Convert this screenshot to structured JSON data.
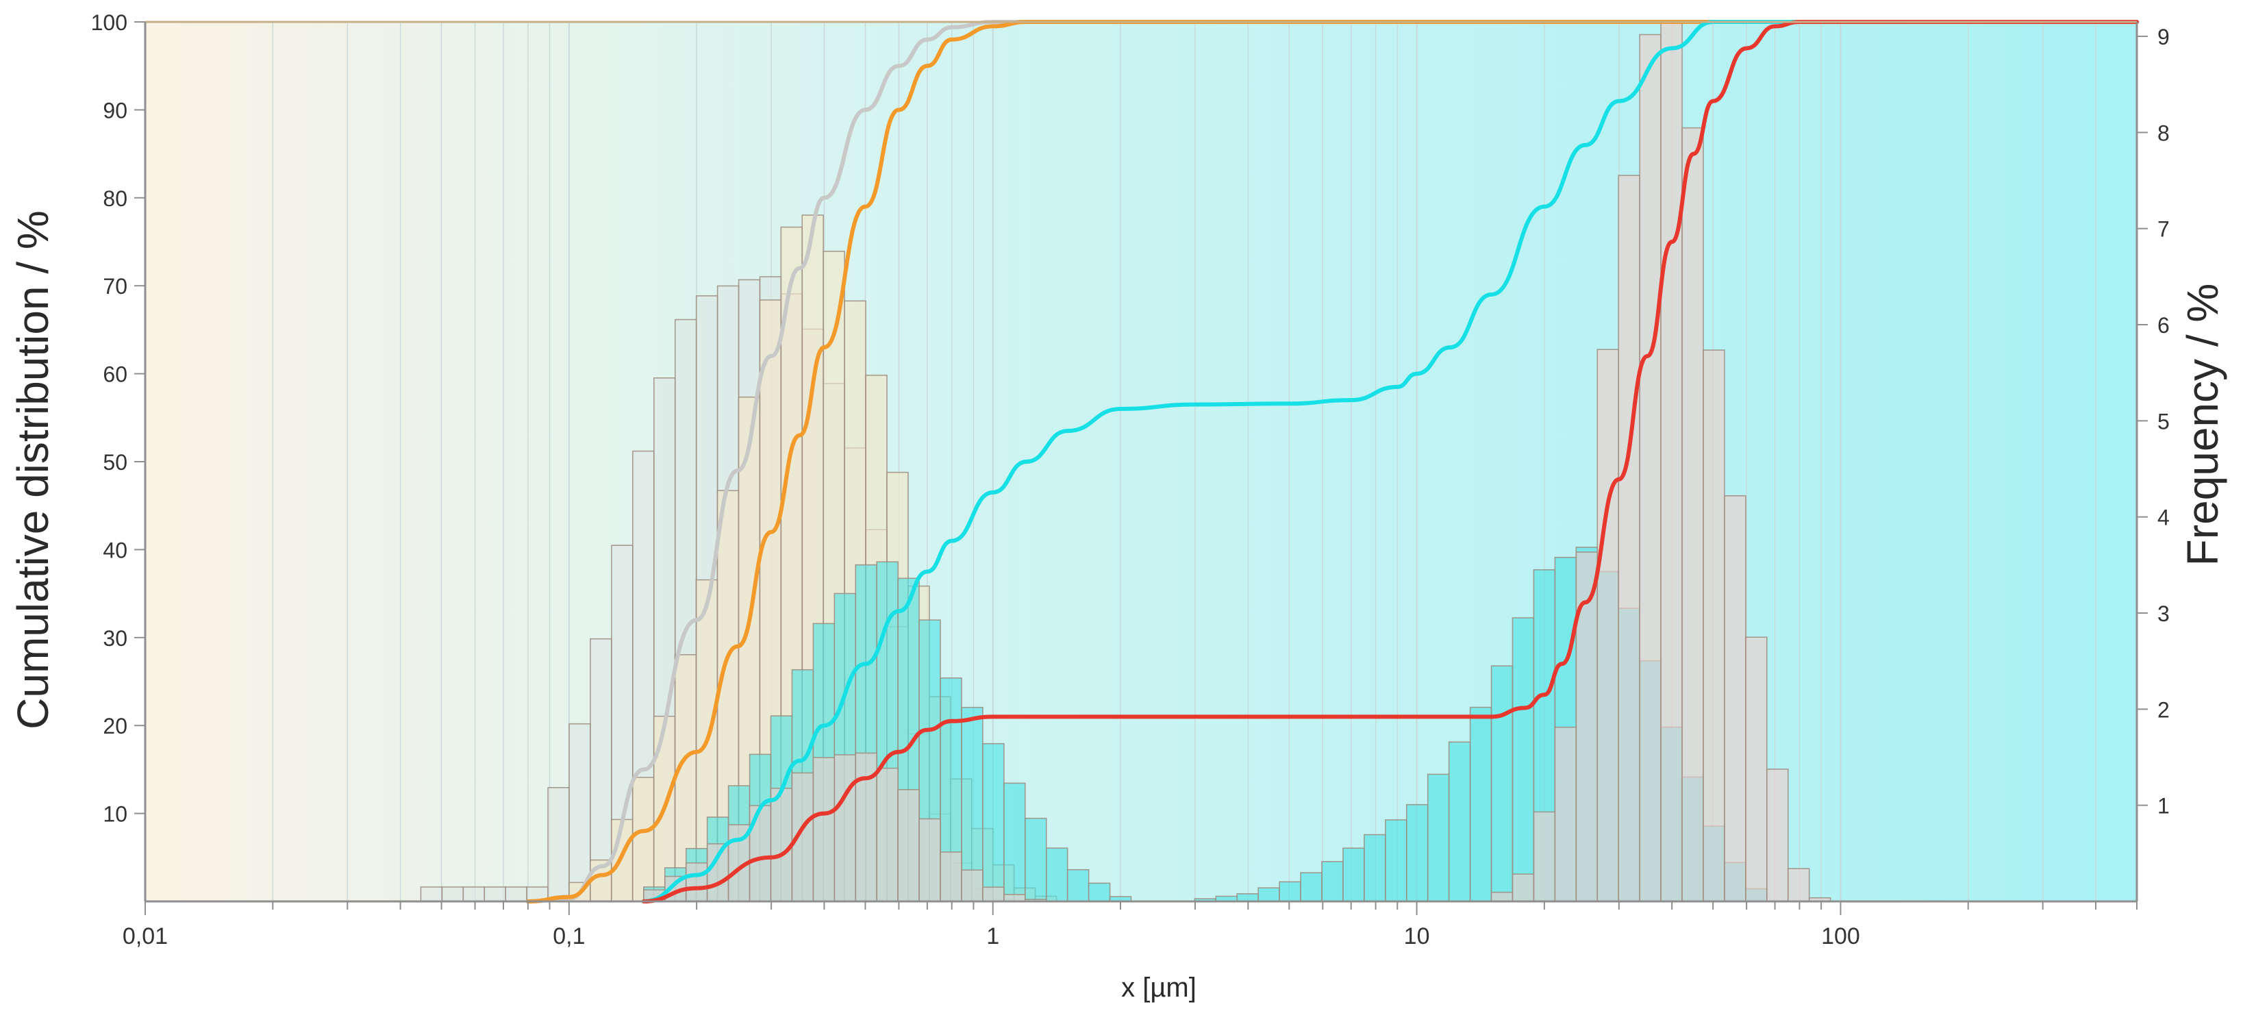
{
  "colors": {
    "background_left": "#fbf3e6",
    "background_mid": "#cdf4f3",
    "background_right": "#a9f1f5",
    "grid": "#c9d9d9",
    "axis": "#c8b18a",
    "series_gray": "#c8c8c8",
    "series_orange": "#f39a2a",
    "series_cyan": "#16e0e6",
    "series_red": "#e8372c",
    "bars_gray_fill": "#dde7e4",
    "bars_orange_fill": "#f3e6c6",
    "bars_cyan_fill": "#4fe2e4",
    "bars_red_fill": "#efcfc9",
    "bar_stroke": "#9c8c80"
  },
  "chart_data": {
    "type": "bar+line",
    "xscale": "log",
    "xlim": [
      0.01,
      500
    ],
    "xlabel": "x [µm]",
    "xticks": [
      {
        "value": 0.01,
        "label": "0,01"
      },
      {
        "value": 0.1,
        "label": "0,1"
      },
      {
        "value": 1,
        "label": "1"
      },
      {
        "value": 10,
        "label": "10"
      },
      {
        "value": 100,
        "label": "100"
      }
    ],
    "ylabel_left": "Cumulative distribution / %",
    "ylim_left": [
      0,
      100
    ],
    "yticks_left": [
      10,
      20,
      30,
      40,
      50,
      60,
      70,
      80,
      90,
      100
    ],
    "ylabel_right": "Frequency / %",
    "ylim_right": [
      0,
      9.15
    ],
    "yticks_right": [
      1,
      2,
      3,
      4,
      5,
      6,
      7,
      8,
      9
    ],
    "histograms": [
      {
        "name": "gray-distribution",
        "color_key": "bars_gray_fill",
        "bins_per_decade": 20,
        "points": [
          [
            0.0447,
            0.15
          ],
          [
            0.09,
            0.15
          ],
          [
            0.09,
            1.0
          ],
          [
            0.1,
            1.4
          ],
          [
            0.12,
            2.8
          ],
          [
            0.15,
            4.7
          ],
          [
            0.18,
            5.9
          ],
          [
            0.2,
            6.25
          ],
          [
            0.25,
            6.45
          ],
          [
            0.3,
            6.5
          ],
          [
            0.35,
            6.25
          ],
          [
            0.4,
            5.7
          ],
          [
            0.5,
            4.4
          ],
          [
            0.6,
            2.8
          ],
          [
            0.7,
            1.3
          ],
          [
            0.8,
            0.55
          ],
          [
            0.9,
            0.2
          ],
          [
            1.0,
            0.05
          ],
          [
            1.12,
            0
          ]
        ]
      },
      {
        "name": "orange-distribution",
        "color_key": "bars_orange_fill",
        "bins_per_decade": 20,
        "points": [
          [
            0.1,
            0.08
          ],
          [
            0.12,
            0.45
          ],
          [
            0.15,
            1.3
          ],
          [
            0.2,
            2.9
          ],
          [
            0.25,
            4.7
          ],
          [
            0.3,
            6.3
          ],
          [
            0.35,
            7.3
          ],
          [
            0.4,
            7.0
          ],
          [
            0.5,
            6.0
          ],
          [
            0.6,
            4.4
          ],
          [
            0.7,
            2.8
          ],
          [
            0.8,
            1.5
          ],
          [
            1.0,
            0.5
          ],
          [
            1.2,
            0.12
          ],
          [
            1.45,
            0
          ]
        ]
      },
      {
        "name": "cyan-distribution",
        "color_key": "bars_cyan_fill",
        "bins_per_decade": 20,
        "points": [
          [
            0.15,
            0.05
          ],
          [
            0.2,
            0.55
          ],
          [
            0.3,
            1.7
          ],
          [
            0.4,
            2.9
          ],
          [
            0.5,
            3.5
          ],
          [
            0.6,
            3.55
          ],
          [
            0.7,
            3.0
          ],
          [
            0.8,
            2.3
          ],
          [
            0.9,
            2.0
          ],
          [
            1.0,
            1.65
          ],
          [
            1.2,
            1.0
          ],
          [
            1.5,
            0.4
          ],
          [
            2.0,
            0.05
          ],
          [
            2.25,
            0
          ],
          [
            2.8,
            0
          ],
          [
            3.2,
            0.03
          ],
          [
            4.0,
            0.08
          ],
          [
            5.0,
            0.2
          ],
          [
            6.0,
            0.35
          ],
          [
            8.0,
            0.7
          ],
          [
            10.0,
            1.0
          ],
          [
            12.0,
            1.5
          ],
          [
            15.0,
            2.2
          ],
          [
            20.0,
            3.45
          ],
          [
            25.0,
            3.7
          ],
          [
            30.0,
            3.3
          ],
          [
            35.0,
            2.6
          ],
          [
            40.0,
            1.8
          ],
          [
            50.0,
            0.8
          ],
          [
            60.0,
            0.2
          ],
          [
            70.0,
            0
          ],
          [
            80.0,
            0
          ]
        ]
      },
      {
        "name": "red-distribution",
        "color_key": "bars_red_fill",
        "bins_per_decade": 20,
        "points": [
          [
            0.15,
            0.05
          ],
          [
            0.2,
            0.4
          ],
          [
            0.3,
            1.1
          ],
          [
            0.4,
            1.5
          ],
          [
            0.5,
            1.55
          ],
          [
            0.6,
            1.3
          ],
          [
            0.7,
            0.9
          ],
          [
            0.8,
            0.5
          ],
          [
            1.0,
            0.15
          ],
          [
            1.2,
            0.03
          ],
          [
            1.4,
            0
          ],
          [
            15.0,
            0
          ],
          [
            18.0,
            0.3
          ],
          [
            22.0,
            1.5
          ],
          [
            25.0,
            3.5
          ],
          [
            28.0,
            5.6
          ],
          [
            32.0,
            7.7
          ],
          [
            35.0,
            9.0
          ],
          [
            40.0,
            9.15
          ],
          [
            45.0,
            8.0
          ],
          [
            50.0,
            5.8
          ],
          [
            60.0,
            3.4
          ],
          [
            70.0,
            1.5
          ],
          [
            80.0,
            0.3
          ],
          [
            90.0,
            0.02
          ],
          [
            100.0,
            0
          ]
        ]
      }
    ],
    "series": [
      {
        "name": "gray-cumulative",
        "color_key": "series_gray",
        "points": [
          [
            0.08,
            0
          ],
          [
            0.1,
            0.3
          ],
          [
            0.12,
            4
          ],
          [
            0.15,
            15
          ],
          [
            0.2,
            32
          ],
          [
            0.25,
            49
          ],
          [
            0.3,
            62
          ],
          [
            0.35,
            72
          ],
          [
            0.4,
            80
          ],
          [
            0.5,
            90
          ],
          [
            0.6,
            95
          ],
          [
            0.7,
            98
          ],
          [
            0.8,
            99.4
          ],
          [
            1.0,
            100
          ],
          [
            100,
            100
          ],
          [
            500,
            100
          ]
        ]
      },
      {
        "name": "orange-cumulative",
        "color_key": "series_orange",
        "points": [
          [
            0.08,
            0
          ],
          [
            0.1,
            0.5
          ],
          [
            0.12,
            3
          ],
          [
            0.15,
            8
          ],
          [
            0.2,
            17
          ],
          [
            0.25,
            29
          ],
          [
            0.3,
            42
          ],
          [
            0.35,
            53
          ],
          [
            0.4,
            63
          ],
          [
            0.5,
            79
          ],
          [
            0.6,
            90
          ],
          [
            0.7,
            95
          ],
          [
            0.8,
            98
          ],
          [
            1.0,
            99.5
          ],
          [
            1.2,
            100
          ],
          [
            100,
            100
          ],
          [
            500,
            100
          ]
        ]
      },
      {
        "name": "cyan-cumulative",
        "color_key": "series_cyan",
        "points": [
          [
            0.15,
            0
          ],
          [
            0.2,
            3
          ],
          [
            0.25,
            7
          ],
          [
            0.3,
            11.5
          ],
          [
            0.35,
            16
          ],
          [
            0.4,
            20
          ],
          [
            0.5,
            27
          ],
          [
            0.6,
            33
          ],
          [
            0.7,
            37.5
          ],
          [
            0.8,
            41
          ],
          [
            1.0,
            46.5
          ],
          [
            1.2,
            50
          ],
          [
            1.5,
            53.5
          ],
          [
            2.0,
            56
          ],
          [
            3.0,
            56.5
          ],
          [
            5.0,
            56.6
          ],
          [
            7.0,
            57
          ],
          [
            9.0,
            58.5
          ],
          [
            10.0,
            60
          ],
          [
            12.0,
            63
          ],
          [
            15.0,
            69
          ],
          [
            20.0,
            79
          ],
          [
            25.0,
            86
          ],
          [
            30.0,
            91
          ],
          [
            40.0,
            97
          ],
          [
            50.0,
            100
          ],
          [
            500,
            100
          ]
        ]
      },
      {
        "name": "red-cumulative",
        "color_key": "series_red",
        "points": [
          [
            0.15,
            0
          ],
          [
            0.2,
            1.5
          ],
          [
            0.3,
            5
          ],
          [
            0.4,
            10
          ],
          [
            0.5,
            14
          ],
          [
            0.6,
            17
          ],
          [
            0.7,
            19.5
          ],
          [
            0.8,
            20.5
          ],
          [
            1.0,
            21
          ],
          [
            10.0,
            21
          ],
          [
            15.0,
            21
          ],
          [
            18.0,
            22
          ],
          [
            20.0,
            23.5
          ],
          [
            22.0,
            27
          ],
          [
            25.0,
            34
          ],
          [
            30.0,
            48
          ],
          [
            35.0,
            62
          ],
          [
            40.0,
            75
          ],
          [
            45.0,
            85
          ],
          [
            50.0,
            91
          ],
          [
            60.0,
            97
          ],
          [
            70.0,
            99.5
          ],
          [
            80.0,
            100
          ],
          [
            500,
            100
          ]
        ]
      }
    ]
  }
}
